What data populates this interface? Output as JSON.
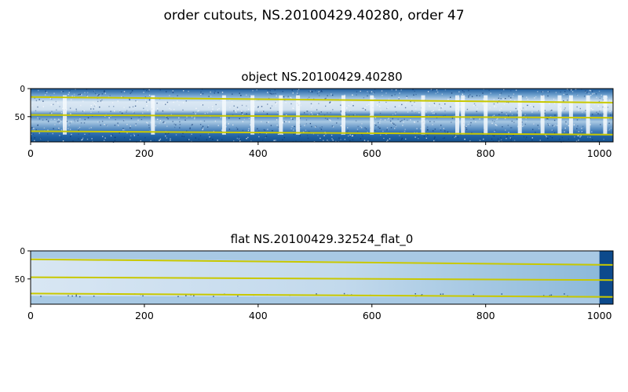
{
  "figure": {
    "suptitle": "order cutouts, NS.20100429.40280, order 47"
  },
  "chart_data": [
    {
      "type": "heatmap",
      "title": "object NS.20100429.40280",
      "colormap": "Blues",
      "xlim": [
        0,
        1024
      ],
      "ylim": [
        95,
        0
      ],
      "xticks": [
        0,
        200,
        400,
        600,
        800,
        1000
      ],
      "yticks": [
        0,
        50
      ],
      "trace_color": "#c8c800",
      "traces": [
        {
          "x": [
            0,
            1024
          ],
          "y": [
            15,
            25
          ]
        },
        {
          "x": [
            0,
            1024
          ],
          "y": [
            47,
            52
          ]
        },
        {
          "x": [
            0,
            1024
          ],
          "y": [
            76,
            82
          ]
        }
      ],
      "emission_lines_x": [
        60,
        215,
        340,
        390,
        440,
        470,
        550,
        600,
        690,
        750,
        760,
        800,
        860,
        900,
        930,
        950,
        980,
        1010
      ]
    },
    {
      "type": "heatmap",
      "title": "flat NS.20100429.32524_flat_0",
      "colormap": "Blues",
      "xlim": [
        0,
        1024
      ],
      "ylim": [
        95,
        0
      ],
      "xticks": [
        0,
        200,
        400,
        600,
        800,
        1000
      ],
      "yticks": [
        0,
        50
      ],
      "trace_color": "#c8c800",
      "traces": [
        {
          "x": [
            0,
            1024
          ],
          "y": [
            15,
            25
          ]
        },
        {
          "x": [
            0,
            1024
          ],
          "y": [
            47,
            52
          ]
        },
        {
          "x": [
            0,
            1024
          ],
          "y": [
            76,
            82
          ]
        }
      ],
      "saturated_x_from": 1000
    }
  ]
}
